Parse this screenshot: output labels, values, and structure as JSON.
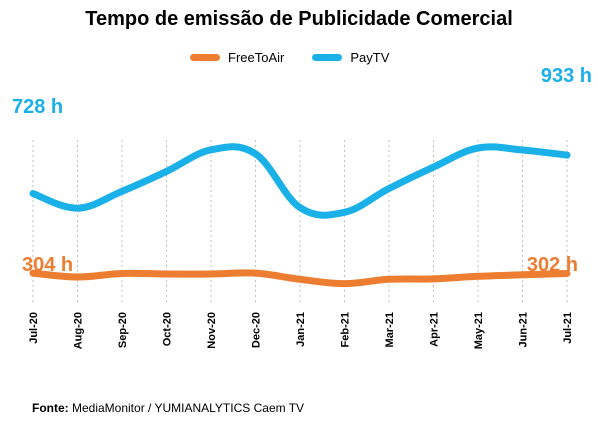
{
  "chart_data": {
    "type": "line",
    "title": "Tempo de emissão de Publicidade Comercial",
    "categories": [
      "Jul-20",
      "Aug-20",
      "Sep-20",
      "Oct-20",
      "Nov-20",
      "Dec-20",
      "Jan-21",
      "Feb-21",
      "Mar-21",
      "Apr-21",
      "May-21",
      "Jun-21",
      "Jul-21"
    ],
    "series": [
      {
        "name": "FreeToAir",
        "color": "#ED7D31",
        "values": [
          304,
          283,
          302,
          299,
          299,
          304,
          271,
          248,
          271,
          273,
          287,
          295,
          302
        ]
      },
      {
        "name": "PayTV",
        "color": "#1AB0E8",
        "values": [
          728,
          650,
          740,
          846,
          961,
          940,
          653,
          628,
          755,
          869,
          971,
          960,
          933
        ]
      }
    ],
    "annotations": [
      {
        "series": "PayTV",
        "point": "first",
        "text": "728 h"
      },
      {
        "series": "PayTV",
        "point": "last",
        "text": "933 h"
      },
      {
        "series": "FreeToAir",
        "point": "first",
        "text": "304 h"
      },
      {
        "series": "FreeToAir",
        "point": "last",
        "text": "302 h"
      }
    ],
    "ylim": [
      150,
      1200
    ],
    "grid": "vertical dotted",
    "legend_position": "top"
  },
  "source": {
    "label": "Fonte:",
    "text": " MediaMonitor / YUMIANALYTICS Caem TV"
  }
}
